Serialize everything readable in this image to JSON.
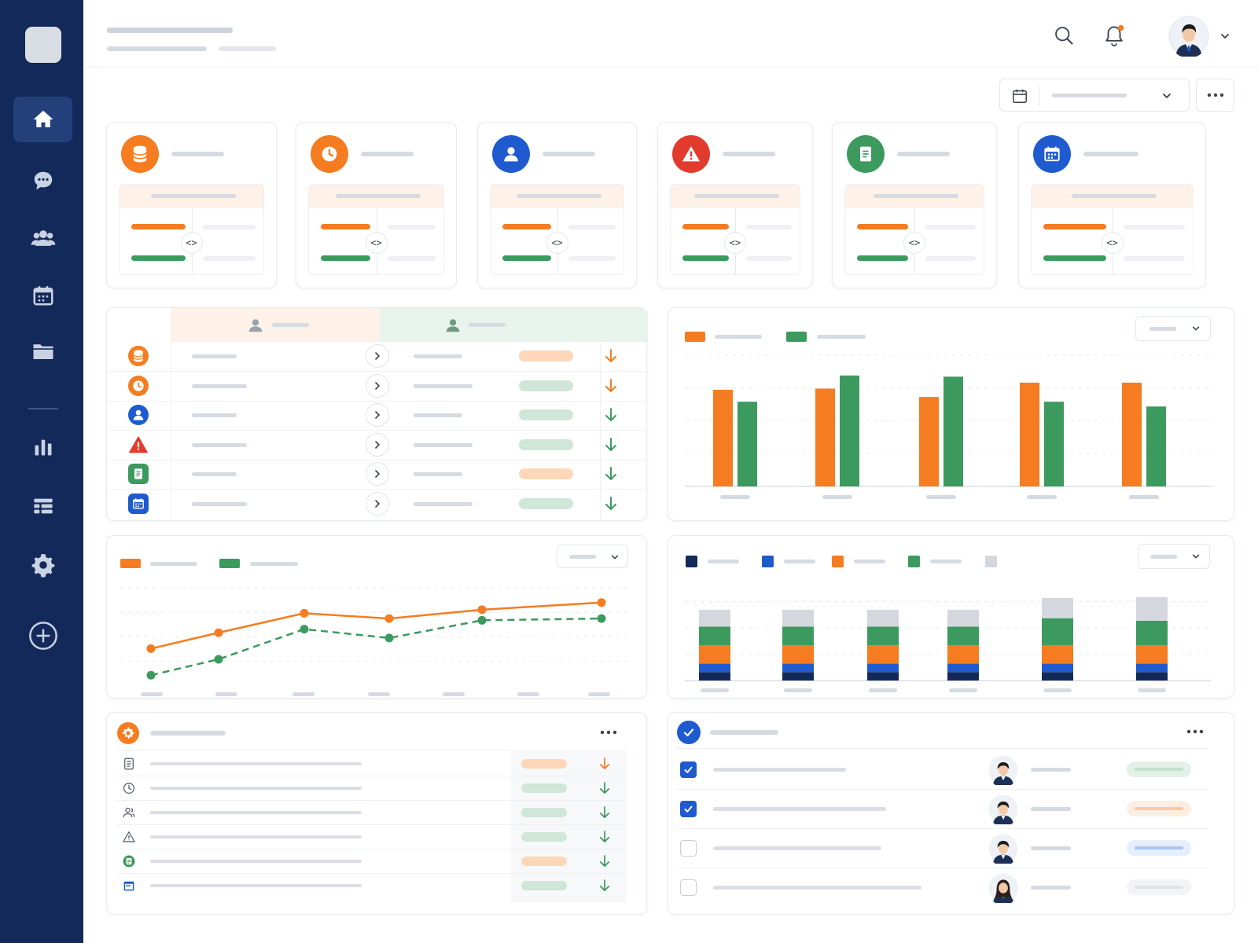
{
  "colors": {
    "sidebar": "#13295a",
    "orange": "#f57c20",
    "green": "#3c9a5f",
    "blue": "#1f5bcf",
    "red": "#e23b2e",
    "navy": "#13295a",
    "gray": "#d4d8de"
  },
  "sidebar": {
    "items": [
      {
        "icon": "home-icon",
        "active": true
      },
      {
        "icon": "chat-icon"
      },
      {
        "icon": "users-icon"
      },
      {
        "icon": "calendar-icon"
      },
      {
        "icon": "folder-icon"
      },
      {
        "icon": "bar-chart-icon"
      },
      {
        "icon": "list-icon"
      },
      {
        "icon": "gear-icon"
      },
      {
        "icon": "add-icon"
      }
    ]
  },
  "header": {
    "icons": [
      "search-icon",
      "bell-icon",
      "avatar",
      "chevron-down-icon"
    ],
    "notification_dot": true
  },
  "kpi_cards": [
    {
      "icon": "database-icon",
      "color": "#f57c20"
    },
    {
      "icon": "clock-icon",
      "color": "#f57c20"
    },
    {
      "icon": "user-icon",
      "color": "#1f5bcf"
    },
    {
      "icon": "warning-icon",
      "color": "#e23b2e"
    },
    {
      "icon": "document-icon",
      "color": "#3c9a5f"
    },
    {
      "icon": "calendar-icon",
      "color": "#1f5bcf"
    }
  ],
  "comparison_table": {
    "rows": [
      {
        "icon": "database-icon",
        "pill": "orange",
        "trend": "down-orange"
      },
      {
        "icon": "clock-icon",
        "pill": "green",
        "trend": "down-orange"
      },
      {
        "icon": "user-icon",
        "pill": "green",
        "trend": "down-green"
      },
      {
        "icon": "warning-icon",
        "pill": "green",
        "trend": "down-green"
      },
      {
        "icon": "document-icon",
        "pill": "orange",
        "trend": "down-green"
      },
      {
        "icon": "calendar-icon",
        "pill": "green",
        "trend": "down-green"
      }
    ]
  },
  "chart_data": [
    {
      "type": "bar",
      "series": [
        {
          "color": "#f57c20",
          "values": [
            81,
            82,
            75,
            87,
            87
          ]
        },
        {
          "color": "#3c9a5f",
          "values": [
            71,
            93,
            92,
            71,
            67
          ]
        }
      ],
      "ylim": [
        0,
        110
      ],
      "grid": true,
      "legend": "top-left"
    },
    {
      "type": "line",
      "series": [
        {
          "color": "#f57c20",
          "style": "solid",
          "values": [
            18,
            27,
            38,
            35,
            40,
            44
          ]
        },
        {
          "color": "#3c9a5f",
          "style": "dashed",
          "values": [
            3,
            12,
            29,
            24,
            34,
            35
          ]
        }
      ],
      "ylim": [
        0,
        55
      ],
      "grid": true,
      "legend": "top-left"
    },
    {
      "type": "bar",
      "stacked": true,
      "series": [
        {
          "color": "#13295a",
          "values": [
            10,
            10,
            10,
            10,
            10,
            10
          ]
        },
        {
          "color": "#1f5bcf",
          "values": [
            10,
            10,
            10,
            10,
            10,
            10
          ]
        },
        {
          "color": "#f57c20",
          "values": [
            22,
            22,
            22,
            22,
            22,
            22
          ]
        },
        {
          "color": "#3c9a5f",
          "values": [
            22,
            22,
            22,
            22,
            32,
            29
          ]
        },
        {
          "color": "#d4d8de",
          "values": [
            20,
            20,
            20,
            20,
            24,
            28
          ]
        }
      ],
      "ylim": [
        0,
        125
      ],
      "grid": true,
      "legend": "top-left"
    }
  ],
  "activity_list": {
    "header_icon": "gear-icon",
    "rows": [
      {
        "icon": "document-icon",
        "pill": "orange",
        "trend": "down-orange"
      },
      {
        "icon": "clock-icon",
        "pill": "green",
        "trend": "down-green"
      },
      {
        "icon": "users-icon",
        "pill": "green",
        "trend": "down-green"
      },
      {
        "icon": "warning-icon",
        "pill": "green",
        "trend": "down-green"
      },
      {
        "icon": "document-icon",
        "pill": "orange",
        "trend": "down-green"
      },
      {
        "icon": "calendar-icon",
        "pill": "green",
        "trend": "down-green"
      }
    ]
  },
  "task_list": {
    "header_icon": "check-circle-icon",
    "rows": [
      {
        "checked": true,
        "status": "green"
      },
      {
        "checked": true,
        "status": "orange"
      },
      {
        "checked": false,
        "status": "blue"
      },
      {
        "checked": false,
        "status": "gray"
      }
    ]
  }
}
